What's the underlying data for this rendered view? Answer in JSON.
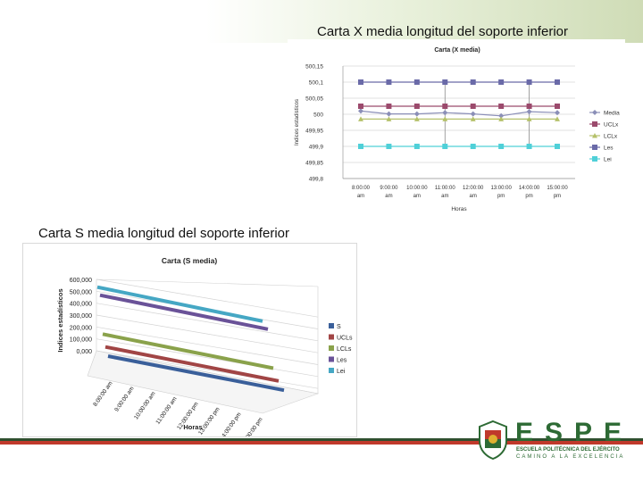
{
  "slide": {
    "title_x": "Carta X media longitud del soporte inferior",
    "title_s": "Carta S media longitud del soporte inferior"
  },
  "logo": {
    "word": "ESPE",
    "subtitle": "ESCUELA POLITÉCNICA DEL EJÉRCITO",
    "motto": "CAMINO A LA EXCELENCIA"
  },
  "colors": {
    "bottom_bar_dark": "#2f4f2f",
    "bottom_bar_red": "#c0392b",
    "brand_green": "#2d6a34"
  },
  "chart_data": [
    {
      "type": "line",
      "title": "Carta (X media)",
      "xlabel": "Horas",
      "ylabel": "Indices estadisticos",
      "categories": [
        "8:00:00 am",
        "9:00:00 am",
        "10:00:00 am",
        "11:00:00 am",
        "12:00:00 am",
        "13:00:00 pm",
        "14:00:00 pm",
        "15:00:00 pm"
      ],
      "y_ticks": [
        "500,15",
        "500,1",
        "500,05",
        "500",
        "499,95",
        "499,9",
        "499,85",
        "499,8"
      ],
      "ylim": [
        499.8,
        500.15
      ],
      "grid": true,
      "legend_position": "right",
      "series": [
        {
          "name": "Media",
          "color": "#8b8fb8",
          "marker": "diamond",
          "values": [
            500.01,
            500.001,
            500.001,
            500.005,
            500.001,
            499.995,
            500.008,
            500.005
          ]
        },
        {
          "name": "UCLx",
          "color": "#9b4a6c",
          "marker": "square",
          "values": [
            500.025,
            500.025,
            500.025,
            500.025,
            500.025,
            500.025,
            500.025,
            500.025
          ]
        },
        {
          "name": "LCLx",
          "color": "#b5c16a",
          "marker": "triangle",
          "values": [
            499.985,
            499.985,
            499.985,
            499.985,
            499.985,
            499.985,
            499.985,
            499.985
          ]
        },
        {
          "name": "Les",
          "color": "#6a6aa8",
          "marker": "square",
          "values": [
            500.1,
            500.1,
            500.1,
            500.1,
            500.1,
            500.1,
            500.1,
            500.1
          ]
        },
        {
          "name": "Lei",
          "color": "#4fd0d8",
          "marker": "square",
          "values": [
            499.9,
            499.9,
            499.9,
            499.9,
            499.9,
            499.9,
            499.9,
            499.9
          ]
        }
      ]
    },
    {
      "type": "line",
      "title": "Carta (S media)",
      "xlabel": "Horas",
      "ylabel": "Indices estadísticos",
      "categories": [
        "8:00:00 am",
        "9:00:00 am",
        "10:00:00 am",
        "11:00:00 am",
        "12:00:00 pm",
        "13:00:00 pm",
        "14:00:00 pm",
        "15:00:00 pm"
      ],
      "y_ticks": [
        "600,000",
        "500,000",
        "400,000",
        "300,000",
        "200,000",
        "100,000",
        "0,000"
      ],
      "ylim": [
        0,
        600000
      ],
      "grid": true,
      "legend_position": "right",
      "series": [
        {
          "name": "S",
          "color": "#3a5f9a",
          "values": [
            30000,
            30000,
            30000,
            30000,
            30000,
            30000,
            30000,
            30000
          ]
        },
        {
          "name": "UCLs",
          "color": "#a14545",
          "values": [
            100000,
            100000,
            100000,
            100000,
            100000,
            100000,
            100000,
            100000
          ]
        },
        {
          "name": "LCLs",
          "color": "#8aa24b",
          "values": [
            200000,
            200000,
            200000,
            200000,
            200000,
            200000,
            200000,
            200000
          ]
        },
        {
          "name": "Les",
          "color": "#6a5298",
          "values": [
            520000,
            520000,
            520000,
            520000,
            520000,
            520000,
            520000,
            520000
          ]
        },
        {
          "name": "Lei",
          "color": "#45a7c4",
          "values": [
            580000,
            580000,
            580000,
            580000,
            580000,
            580000,
            580000,
            580000
          ]
        }
      ]
    }
  ]
}
